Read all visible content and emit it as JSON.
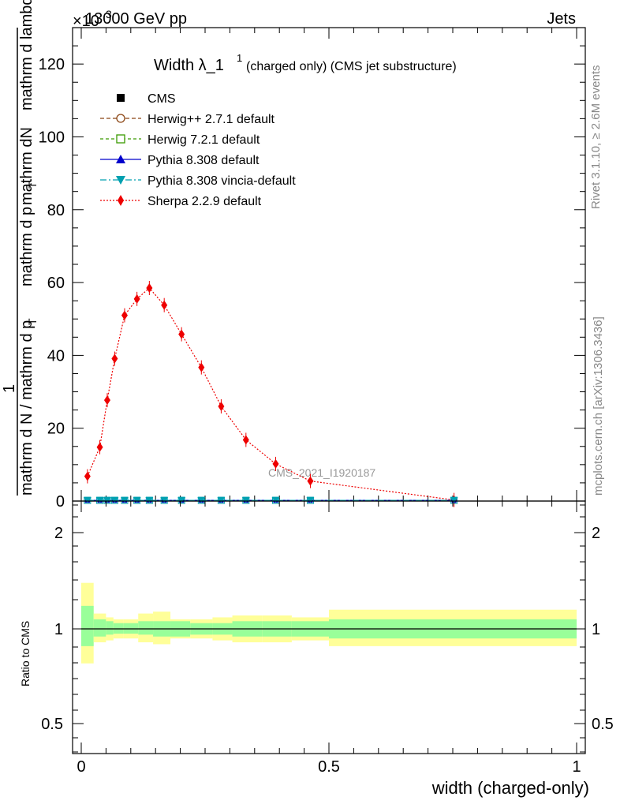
{
  "header": {
    "left": "13000 GeV pp",
    "right": "Jets",
    "exponent": "×10",
    "exponent_power": "3"
  },
  "side_labels": {
    "rivet": "Rivet 3.1.10, ≥ 2.6M events",
    "mcplots": "mcplots.cern.ch [arXiv:1306.3436]"
  },
  "colors": {
    "data": "#000000",
    "herwigpp": "#8b4513",
    "herwig7": "#3a9a00",
    "pythia": "#0000cc",
    "vincia": "#00a0b0",
    "sherpa": "#ee0000",
    "band_inner": "#99ff99",
    "band_outer": "#ffff99"
  },
  "legend": [
    {
      "label": "CMS",
      "style": "data"
    },
    {
      "label": "Herwig++ 2.7.1 default",
      "style": "herwigpp"
    },
    {
      "label": "Herwig 7.2.1 default",
      "style": "herwig7"
    },
    {
      "label": "Pythia 8.308 default",
      "style": "pythia"
    },
    {
      "label": "Pythia 8.308 vincia-default",
      "style": "vincia"
    },
    {
      "label": "Sherpa 2.2.9 default",
      "style": "sherpa"
    }
  ],
  "chart_data": {
    "type": "line",
    "title": "Width λ_1",
    "title_sup": "1",
    "title_suffix": "(charged only) (CMS jet substructure)",
    "watermark": "CMS_2021_I1920187",
    "ylabel_num": "mathrm dN",
    "ylabel_den_top": "mathrm d p",
    "ylabel_den_sub": "T",
    "ylabel_den_rest": "mathrm d lambda",
    "ylabel_frac_num": "1",
    "ylabel_frac_den": "mathrm d N / mathrm d p",
    "ylabel_frac_sub": "T",
    "xlabel": "width (charged-only)",
    "ratio_ylabel": "Ratio to CMS",
    "xlim": [
      0,
      1
    ],
    "ylim": [
      0,
      130
    ],
    "ratio_ylim": [
      0.4,
      2.4
    ],
    "x_ticks": [
      "0",
      "0.5",
      "1"
    ],
    "y_ticks": [
      "0",
      "20",
      "40",
      "60",
      "80",
      "100",
      "120"
    ],
    "ratio_ticks": [
      "0.5",
      "1",
      "2"
    ],
    "x": [
      0.0125,
      0.0375,
      0.0525,
      0.0675,
      0.0875,
      0.1125,
      0.1375,
      0.1675,
      0.2025,
      0.2425,
      0.2825,
      0.3325,
      0.3925,
      0.4625,
      0.7525
    ],
    "series": [
      {
        "name": "Sherpa 2.2.9 default",
        "style": "sherpa",
        "values": [
          6.8,
          14.8,
          27.7,
          39.1,
          51.0,
          55.5,
          58.5,
          53.8,
          45.8,
          36.7,
          26.0,
          16.8,
          10.2,
          5.5,
          0.3
        ]
      },
      {
        "name": "Herwig++ 2.7.1 default",
        "style": "herwigpp",
        "values": [
          0.2,
          0.2,
          0.2,
          0.2,
          0.2,
          0.2,
          0.2,
          0.2,
          0.2,
          0.2,
          0.2,
          0.2,
          0.2,
          0.2,
          0.2
        ]
      },
      {
        "name": "Herwig 7.2.1 default",
        "style": "herwig7",
        "values": [
          0.2,
          0.2,
          0.2,
          0.2,
          0.2,
          0.2,
          0.2,
          0.2,
          0.2,
          0.2,
          0.2,
          0.2,
          0.2,
          0.2,
          0.2
        ]
      },
      {
        "name": "Pythia 8.308 default",
        "style": "pythia",
        "values": [
          0.2,
          0.2,
          0.2,
          0.2,
          0.2,
          0.2,
          0.2,
          0.2,
          0.2,
          0.2,
          0.2,
          0.2,
          0.2,
          0.2,
          0.2
        ]
      },
      {
        "name": "Pythia 8.308 vincia-default",
        "style": "vincia",
        "values": [
          0.2,
          0.2,
          0.2,
          0.2,
          0.2,
          0.2,
          0.2,
          0.2,
          0.2,
          0.2,
          0.2,
          0.2,
          0.2,
          0.2,
          0.2
        ]
      },
      {
        "name": "CMS",
        "style": "data",
        "values": [
          0.2,
          0.2,
          0.2,
          0.2,
          0.2,
          0.2,
          0.2,
          0.2,
          0.2,
          0.2,
          0.2,
          0.2,
          0.2,
          0.2,
          0.2
        ]
      }
    ],
    "ratio_bands": {
      "edges": [
        0,
        0.025,
        0.05,
        0.065,
        0.085,
        0.115,
        0.145,
        0.18,
        0.22,
        0.265,
        0.305,
        0.365,
        0.425,
        0.5,
        1.0
      ],
      "inner": [
        [
          0.91,
          1.12
        ],
        [
          0.96,
          1.05
        ],
        [
          0.97,
          1.04
        ],
        [
          0.975,
          1.03
        ],
        [
          0.975,
          1.03
        ],
        [
          0.97,
          1.04
        ],
        [
          0.96,
          1.04
        ],
        [
          0.96,
          1.04
        ],
        [
          0.97,
          1.03
        ],
        [
          0.97,
          1.03
        ],
        [
          0.96,
          1.04
        ],
        [
          0.96,
          1.04
        ],
        [
          0.96,
          1.04
        ],
        [
          0.95,
          1.05
        ]
      ],
      "outer": [
        [
          0.82,
          1.24
        ],
        [
          0.93,
          1.08
        ],
        [
          0.94,
          1.06
        ],
        [
          0.95,
          1.05
        ],
        [
          0.95,
          1.05
        ],
        [
          0.93,
          1.08
        ],
        [
          0.92,
          1.09
        ],
        [
          0.95,
          1.05
        ],
        [
          0.95,
          1.05
        ],
        [
          0.94,
          1.06
        ],
        [
          0.93,
          1.07
        ],
        [
          0.93,
          1.07
        ],
        [
          0.94,
          1.06
        ],
        [
          0.91,
          1.1
        ]
      ]
    }
  }
}
